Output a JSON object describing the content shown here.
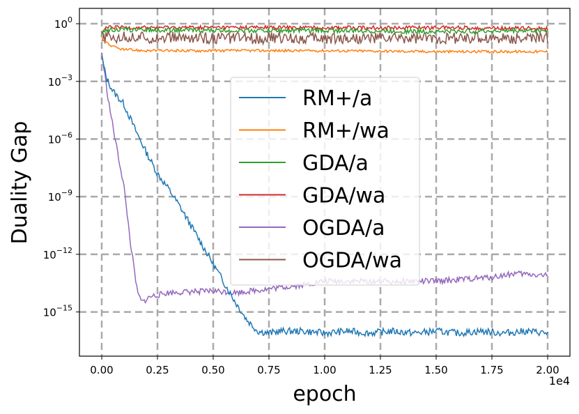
{
  "chart_data": {
    "type": "line",
    "xlabel": "epoch",
    "ylabel": "Duality Gap",
    "x_offset_label": "1e4",
    "yscale": "log",
    "xlim": [
      -0.1,
      2.1
    ],
    "ylim_log10": [
      -17.3,
      0.8
    ],
    "x_ticks": [
      {
        "value": 0.0,
        "label": "0.00"
      },
      {
        "value": 0.25,
        "label": "0.25"
      },
      {
        "value": 0.5,
        "label": "0.50"
      },
      {
        "value": 0.75,
        "label": "0.75"
      },
      {
        "value": 1.0,
        "label": "1.00"
      },
      {
        "value": 1.25,
        "label": "1.25"
      },
      {
        "value": 1.5,
        "label": "1.50"
      },
      {
        "value": 1.75,
        "label": "1.75"
      },
      {
        "value": 2.0,
        "label": "2.00"
      }
    ],
    "y_ticks": [
      {
        "exp": 0,
        "base": "10",
        "sup": "0"
      },
      {
        "exp": -3,
        "base": "10",
        "sup": "−3"
      },
      {
        "exp": -6,
        "base": "10",
        "sup": "−6"
      },
      {
        "exp": -9,
        "base": "10",
        "sup": "−9"
      },
      {
        "exp": -12,
        "base": "10",
        "sup": "−12"
      },
      {
        "exp": -15,
        "base": "10",
        "sup": "−15"
      }
    ],
    "grid": true,
    "legend_position": "center",
    "series": [
      {
        "name": "RM+/a",
        "color": "#1f77b4",
        "points": [
          [
            0,
            -1.7
          ],
          [
            0.02,
            -2.8
          ],
          [
            0.05,
            -3.5
          ],
          [
            0.1,
            -4.2
          ],
          [
            0.15,
            -5.5
          ],
          [
            0.2,
            -6.7
          ],
          [
            0.25,
            -7.8
          ],
          [
            0.3,
            -8.6
          ],
          [
            0.35,
            -9.5
          ],
          [
            0.4,
            -10.5
          ],
          [
            0.45,
            -11.5
          ],
          [
            0.5,
            -12.5
          ],
          [
            0.55,
            -13.5
          ],
          [
            0.6,
            -14.5
          ],
          [
            0.65,
            -15.4
          ],
          [
            0.7,
            -16.0
          ],
          [
            0.75,
            -16.1
          ],
          [
            0.8,
            -16.0
          ],
          [
            0.9,
            -16.0
          ],
          [
            1.0,
            -16.1
          ],
          [
            1.1,
            -16.0
          ],
          [
            1.2,
            -16.1
          ],
          [
            1.3,
            -16.0
          ],
          [
            1.4,
            -16.1
          ],
          [
            1.5,
            -16.0
          ],
          [
            1.6,
            -16.1
          ],
          [
            1.7,
            -16.0
          ],
          [
            1.8,
            -16.1
          ],
          [
            1.9,
            -16.0
          ],
          [
            2.0,
            -16.1
          ]
        ],
        "noise": 0.18
      },
      {
        "name": "RM+/wa",
        "color": "#ff7f0e",
        "points": [
          [
            0,
            -0.8
          ],
          [
            0.05,
            -1.2
          ],
          [
            0.1,
            -1.35
          ],
          [
            0.2,
            -1.4
          ],
          [
            0.5,
            -1.4
          ],
          [
            1.0,
            -1.4
          ],
          [
            1.5,
            -1.45
          ],
          [
            2.0,
            -1.45
          ]
        ],
        "noise": 0.07
      },
      {
        "name": "GDA/a",
        "color": "#2ca02c",
        "points": [
          [
            0,
            -0.6
          ],
          [
            0.02,
            -0.3
          ],
          [
            0.5,
            -0.35
          ],
          [
            1.0,
            -0.35
          ],
          [
            1.5,
            -0.4
          ],
          [
            2.0,
            -0.35
          ]
        ],
        "noise": 0.12
      },
      {
        "name": "GDA/wa",
        "color": "#d62728",
        "points": [
          [
            0,
            -0.5
          ],
          [
            0.02,
            -0.2
          ],
          [
            0.5,
            -0.2
          ],
          [
            1.0,
            -0.2
          ],
          [
            1.5,
            -0.2
          ],
          [
            2.0,
            -0.25
          ]
        ],
        "noise": 0.1
      },
      {
        "name": "OGDA/a",
        "color": "#9467bd",
        "points": [
          [
            0,
            -1.5
          ],
          [
            0.03,
            -4.0
          ],
          [
            0.06,
            -6.0
          ],
          [
            0.1,
            -8.5
          ],
          [
            0.13,
            -11.5
          ],
          [
            0.16,
            -14.0
          ],
          [
            0.18,
            -14.5
          ],
          [
            0.22,
            -14.2
          ],
          [
            0.3,
            -14.0
          ],
          [
            0.5,
            -13.9
          ],
          [
            0.6,
            -14.0
          ],
          [
            0.75,
            -13.8
          ],
          [
            0.9,
            -13.6
          ],
          [
            1.0,
            -13.4
          ],
          [
            1.25,
            -13.4
          ],
          [
            1.5,
            -13.4
          ],
          [
            1.75,
            -13.2
          ],
          [
            1.85,
            -13.0
          ],
          [
            2.0,
            -13.1
          ]
        ],
        "noise": 0.15
      },
      {
        "name": "OGDA/wa",
        "color": "#8c564b",
        "points": [
          [
            0,
            -0.9
          ],
          [
            0.02,
            -0.7
          ],
          [
            0.5,
            -0.75
          ],
          [
            1.0,
            -0.75
          ],
          [
            1.5,
            -0.75
          ],
          [
            2.0,
            -0.75
          ]
        ],
        "noise": 0.3
      }
    ]
  }
}
